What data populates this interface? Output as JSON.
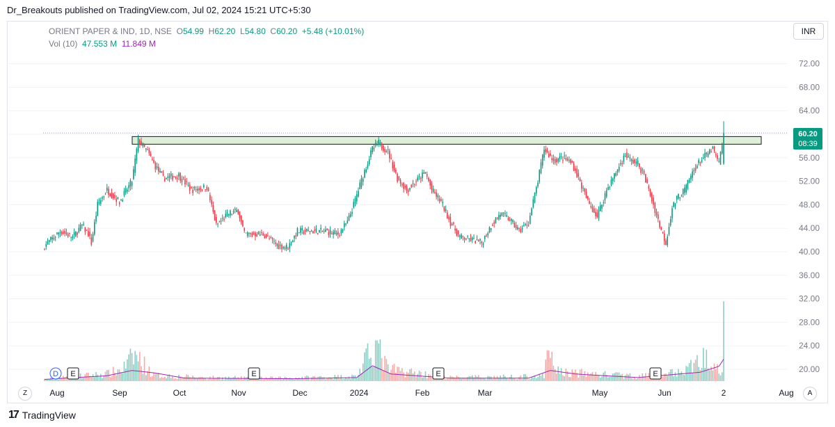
{
  "header": {
    "published_by": "Dr_Breakouts published on TradingView.com, Jul 02, 2024 15:21 UTC+5:30"
  },
  "legend": {
    "symbol": "ORIENT PAPER & IND, 1D, NSE",
    "open_label": "O",
    "open": "54.99",
    "high_label": "H",
    "high": "62.20",
    "low_label": "L",
    "low": "54.80",
    "close_label": "C",
    "close": "60.20",
    "change": "+5.48 (+10.01%)",
    "vol_label": "Vol (10)",
    "vol_value": "47.553 M",
    "vol_ma": "11.849 M"
  },
  "currency": "INR",
  "last_price_tag": {
    "price": "60.20",
    "countdown": "08:39"
  },
  "controls": {
    "z_button": "Z",
    "a_button": "A"
  },
  "footer": {
    "brand": "TradingView",
    "logo_glyph": "17"
  },
  "colors": {
    "up": "#089981",
    "down": "#f23645",
    "vol_up": "#8fcdc4",
    "vol_down": "#f7a9a7",
    "ma": "#9c27b0",
    "zone_fill": "#dff0d8",
    "grid": "#f0f3fa",
    "axis_text": "#787b86"
  },
  "chart_data": {
    "type": "candlestick",
    "price_axis_ticks": [
      20.0,
      24.0,
      28.0,
      32.0,
      36.0,
      40.0,
      44.0,
      48.0,
      52.0,
      56.0,
      60.0,
      64.0,
      68.0,
      72.0
    ],
    "time_axis_labels": [
      "Aug",
      "Sep",
      "Oct",
      "Nov",
      "Dec",
      "2024",
      "Feb",
      "Mar",
      "May",
      "Jun",
      "2",
      "Aug"
    ],
    "resistance_zone": {
      "low": 58.3,
      "high": 59.6,
      "from": "Sep",
      "to": "2"
    },
    "earnings_markers": [
      "E",
      "E",
      "E",
      "E"
    ],
    "dividend_markers": [
      "D"
    ],
    "last": {
      "open": 54.99,
      "high": 62.2,
      "low": 54.8,
      "close": 60.2
    },
    "path_points": [
      {
        "x": 0,
        "p": 41.0
      },
      {
        "x": 10,
        "p": 43.5
      },
      {
        "x": 18,
        "p": 42.5
      },
      {
        "x": 24,
        "p": 44.5
      },
      {
        "x": 28,
        "p": 43.0
      },
      {
        "x": 30,
        "p": 41.5
      },
      {
        "x": 34,
        "p": 48.0
      },
      {
        "x": 40,
        "p": 50.5
      },
      {
        "x": 48,
        "p": 48.5
      },
      {
        "x": 56,
        "p": 52.0
      },
      {
        "x": 60,
        "p": 59.0
      },
      {
        "x": 66,
        "p": 57.0
      },
      {
        "x": 70,
        "p": 55.0
      },
      {
        "x": 76,
        "p": 52.5
      },
      {
        "x": 86,
        "p": 53.0
      },
      {
        "x": 94,
        "p": 50.5
      },
      {
        "x": 104,
        "p": 51.0
      },
      {
        "x": 110,
        "p": 44.5
      },
      {
        "x": 118,
        "p": 46.5
      },
      {
        "x": 124,
        "p": 47.0
      },
      {
        "x": 128,
        "p": 43.0
      },
      {
        "x": 140,
        "p": 43.0
      },
      {
        "x": 150,
        "p": 41.0
      },
      {
        "x": 156,
        "p": 40.8
      },
      {
        "x": 162,
        "p": 43.5
      },
      {
        "x": 180,
        "p": 43.5
      },
      {
        "x": 188,
        "p": 43.0
      },
      {
        "x": 194,
        "p": 45.0
      },
      {
        "x": 198,
        "p": 48.0
      },
      {
        "x": 204,
        "p": 53.0
      },
      {
        "x": 210,
        "p": 57.5
      },
      {
        "x": 214,
        "p": 58.5
      },
      {
        "x": 220,
        "p": 57.0
      },
      {
        "x": 226,
        "p": 52.5
      },
      {
        "x": 232,
        "p": 50.5
      },
      {
        "x": 238,
        "p": 52.0
      },
      {
        "x": 244,
        "p": 53.5
      },
      {
        "x": 248,
        "p": 50.5
      },
      {
        "x": 254,
        "p": 48.5
      },
      {
        "x": 260,
        "p": 45.0
      },
      {
        "x": 266,
        "p": 42.5
      },
      {
        "x": 274,
        "p": 42.0
      },
      {
        "x": 280,
        "p": 41.5
      },
      {
        "x": 286,
        "p": 44.5
      },
      {
        "x": 292,
        "p": 46.5
      },
      {
        "x": 298,
        "p": 45.5
      },
      {
        "x": 304,
        "p": 43.5
      },
      {
        "x": 310,
        "p": 45.0
      },
      {
        "x": 316,
        "p": 52.0
      },
      {
        "x": 320,
        "p": 57.5
      },
      {
        "x": 326,
        "p": 55.5
      },
      {
        "x": 332,
        "p": 56.0
      },
      {
        "x": 338,
        "p": 55.0
      },
      {
        "x": 342,
        "p": 52.5
      },
      {
        "x": 348,
        "p": 48.5
      },
      {
        "x": 354,
        "p": 46.0
      },
      {
        "x": 360,
        "p": 50.5
      },
      {
        "x": 366,
        "p": 53.5
      },
      {
        "x": 372,
        "p": 56.5
      },
      {
        "x": 376,
        "p": 55.5
      },
      {
        "x": 380,
        "p": 55.0
      },
      {
        "x": 384,
        "p": 53.0
      },
      {
        "x": 390,
        "p": 48.0
      },
      {
        "x": 394,
        "p": 44.5
      },
      {
        "x": 398,
        "p": 41.5
      },
      {
        "x": 402,
        "p": 47.5
      },
      {
        "x": 406,
        "p": 49.5
      },
      {
        "x": 410,
        "p": 50.5
      },
      {
        "x": 416,
        "p": 54.0
      },
      {
        "x": 420,
        "p": 55.5
      },
      {
        "x": 424,
        "p": 56.5
      },
      {
        "x": 428,
        "p": 57.5
      },
      {
        "x": 432,
        "p": 55.0
      },
      {
        "x": 435,
        "p": 60.2
      }
    ],
    "volume_points": [
      {
        "x": 0,
        "v": 0.3
      },
      {
        "x": 20,
        "v": 0.8
      },
      {
        "x": 40,
        "v": 1.2
      },
      {
        "x": 50,
        "v": 2.0
      },
      {
        "x": 58,
        "v": 4.4
      },
      {
        "x": 70,
        "v": 1.0
      },
      {
        "x": 100,
        "v": 0.6
      },
      {
        "x": 150,
        "v": 0.5
      },
      {
        "x": 200,
        "v": 0.8
      },
      {
        "x": 206,
        "v": 3.6
      },
      {
        "x": 212,
        "v": 6.2
      },
      {
        "x": 220,
        "v": 2.0
      },
      {
        "x": 260,
        "v": 0.6
      },
      {
        "x": 320,
        "v": 0.8
      },
      {
        "x": 322,
        "v": 4.4
      },
      {
        "x": 330,
        "v": 1.5
      },
      {
        "x": 380,
        "v": 0.8
      },
      {
        "x": 410,
        "v": 1.6
      },
      {
        "x": 420,
        "v": 3.6
      },
      {
        "x": 428,
        "v": 4.2
      },
      {
        "x": 434,
        "v": 2.0
      },
      {
        "x": 435,
        "v": 13.5
      }
    ],
    "volume_ma_points": [
      {
        "x": 0,
        "m": 0.3
      },
      {
        "x": 40,
        "m": 0.9
      },
      {
        "x": 56,
        "m": 1.8
      },
      {
        "x": 70,
        "m": 1.4
      },
      {
        "x": 90,
        "m": 0.5
      },
      {
        "x": 160,
        "m": 0.4
      },
      {
        "x": 200,
        "m": 0.6
      },
      {
        "x": 210,
        "m": 2.6
      },
      {
        "x": 222,
        "m": 1.2
      },
      {
        "x": 260,
        "m": 0.5
      },
      {
        "x": 310,
        "m": 0.5
      },
      {
        "x": 324,
        "m": 1.8
      },
      {
        "x": 340,
        "m": 1.2
      },
      {
        "x": 380,
        "m": 0.6
      },
      {
        "x": 420,
        "m": 1.5
      },
      {
        "x": 432,
        "m": 2.5
      },
      {
        "x": 435,
        "m": 3.7
      }
    ]
  }
}
